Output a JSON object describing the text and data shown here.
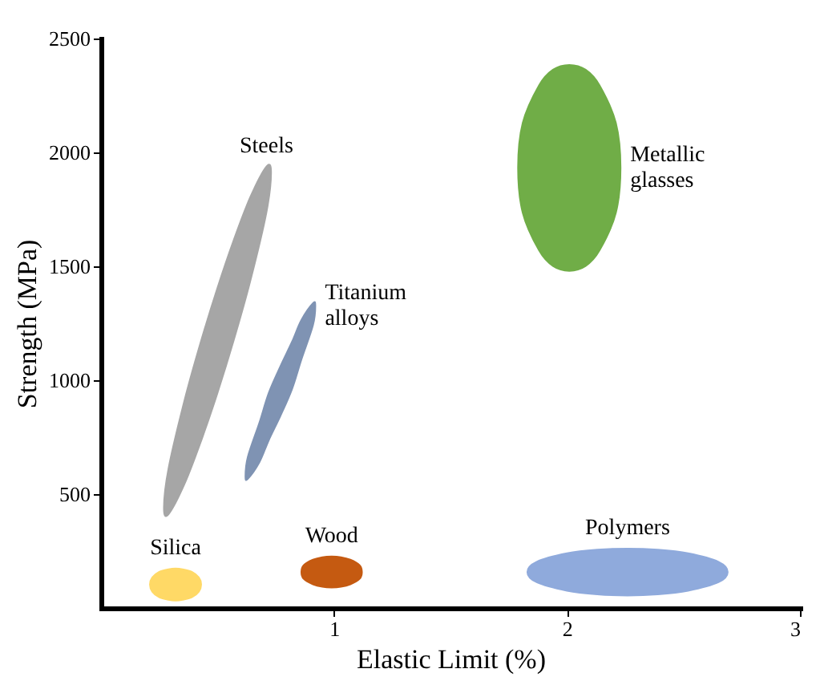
{
  "chart_data": {
    "type": "area",
    "xlabel": "Elastic Limit (%)",
    "ylabel": "Strength (MPa)",
    "xlim": [
      0,
      3
    ],
    "xticks": [
      1,
      2,
      3
    ],
    "ylim": [
      0,
      2500
    ],
    "yticks": [
      500,
      1000,
      1500,
      2000,
      2500
    ],
    "marker": "none",
    "series": [
      {
        "name": "Steels",
        "color": "#a6a6a6",
        "x": [
          0.27,
          0.29,
          0.36,
          0.43,
          0.5,
          0.57,
          0.64,
          0.71,
          0.73,
          0.71,
          0.64,
          0.57,
          0.5,
          0.43,
          0.36,
          0.29
        ],
        "values": [
          439,
          614,
          918,
          1174,
          1406,
          1616,
          1802,
          1938,
          1911,
          1736,
          1432,
          1176,
          944,
          734,
          548,
          412
        ]
      },
      {
        "name": "Titanium alloys",
        "color": "#7f93b3",
        "x": [
          0.62,
          0.63,
          0.68,
          0.72,
          0.77,
          0.82,
          0.86,
          0.91,
          0.92,
          0.91,
          0.86,
          0.82,
          0.77,
          0.72,
          0.68,
          0.63
        ],
        "values": [
          577,
          663,
          814,
          944,
          1061,
          1169,
          1264,
          1338,
          1327,
          1242,
          1090,
          961,
          843,
          736,
          640,
          567
        ]
      },
      {
        "name": "Metallic glasses",
        "color": "#70ad47",
        "x": [
          1.79,
          1.81,
          1.88,
          1.94,
          2.01,
          2.08,
          2.14,
          2.21,
          2.23,
          2.21,
          2.14,
          2.08,
          2.01,
          1.94,
          1.88,
          1.81
        ],
        "values": [
          1932,
          2129,
          2294,
          2363,
          2384,
          2363,
          2294,
          2129,
          1932,
          1735,
          1570,
          1501,
          1480,
          1501,
          1570,
          1735
        ]
      },
      {
        "name": "Silica",
        "color": "#ffd966",
        "x": [
          0.21,
          0.22,
          0.25,
          0.29,
          0.32,
          0.35,
          0.39,
          0.42,
          0.43,
          0.42,
          0.39,
          0.35,
          0.32,
          0.29,
          0.25,
          0.22
        ],
        "values": [
          103,
          134,
          159,
          170,
          173,
          170,
          159,
          134,
          103,
          72,
          47,
          36,
          33,
          36,
          47,
          72
        ]
      },
      {
        "name": "Wood",
        "color": "#c55a11",
        "x": [
          0.86,
          0.87,
          0.91,
          0.95,
          0.99,
          1.03,
          1.07,
          1.11,
          1.12,
          1.11,
          1.07,
          1.03,
          0.99,
          0.95,
          0.91,
          0.87
        ],
        "values": [
          158,
          188,
          212,
          223,
          226,
          223,
          212,
          188,
          158,
          128,
          104,
          93,
          90,
          93,
          104,
          128
        ]
      },
      {
        "name": "Polymers",
        "color": "#8faadc",
        "x": [
          1.83,
          1.87,
          2.0,
          2.13,
          2.26,
          2.39,
          2.52,
          2.65,
          2.69,
          2.65,
          2.52,
          2.39,
          2.26,
          2.13,
          2.0,
          1.87
        ],
        "values": [
          158,
          203,
          240,
          256,
          261,
          256,
          240,
          203,
          158,
          113,
          76,
          60,
          55,
          60,
          76,
          113
        ]
      }
    ]
  }
}
